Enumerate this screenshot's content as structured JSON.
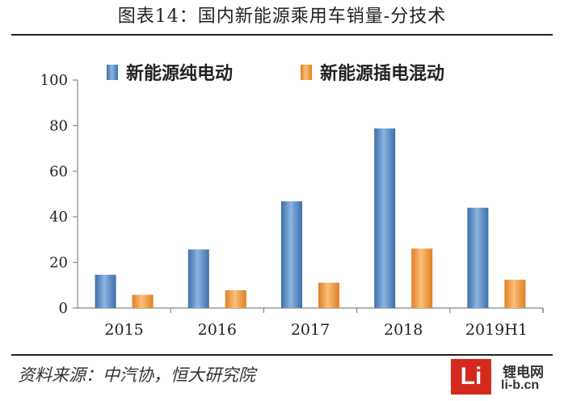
{
  "figure_title": "图表14：国内新能源乘用车销量-分技术",
  "source_note": "资料来源：中汽协，恒大研究院",
  "watermark": {
    "logo_text": "Li",
    "name": "锂电网",
    "url": "li-b.cn"
  },
  "colors": {
    "bev": "#4a7ebb",
    "phev": "#f39a3c",
    "axis": "#888888",
    "text": "#222222"
  },
  "chart_data": {
    "type": "bar",
    "categories": [
      "2015",
      "2016",
      "2017",
      "2018",
      "2019H1"
    ],
    "series": [
      {
        "name": "新能源纯电动",
        "values": [
          14.6,
          25.7,
          46.8,
          78.8,
          44.0
        ]
      },
      {
        "name": "新能源插电混动",
        "values": [
          5.8,
          7.8,
          11.1,
          26.1,
          12.4
        ]
      }
    ],
    "yticks": [
      "0",
      "20",
      "40",
      "60",
      "80",
      "100"
    ],
    "ylim": [
      0,
      100
    ],
    "xlabel": "",
    "ylabel": "",
    "legend_position": "top",
    "grid": false
  }
}
